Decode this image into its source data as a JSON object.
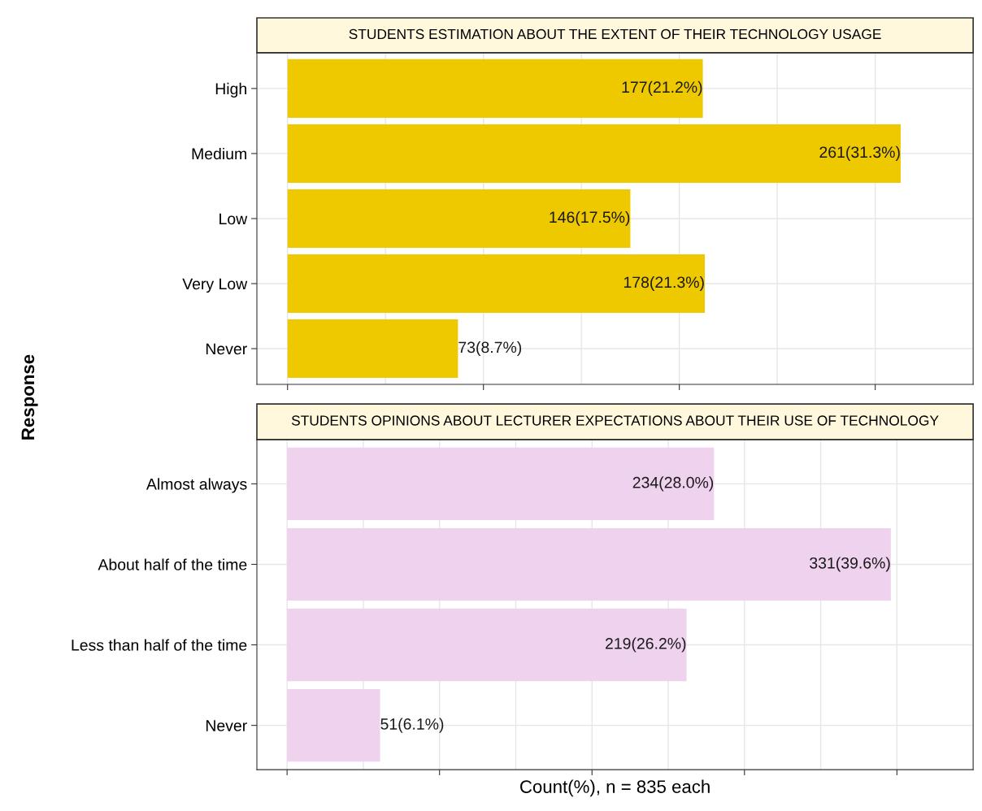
{
  "chart_data": [
    {
      "type": "bar",
      "orientation": "horizontal",
      "title": "STUDENTS ESTIMATION ABOUT THE EXTENT OF THEIR TECHNOLOGY USAGE",
      "ylabel": "Response",
      "categories": [
        "High",
        "Medium",
        "Low",
        "Very Low",
        "Never"
      ],
      "values": [
        21.2,
        31.3,
        17.5,
        21.3,
        8.7
      ],
      "value_labels": [
        "177(21.2%)",
        "261(31.3%)",
        "146(17.5%)",
        "178(21.3%)",
        "73(8.7%)"
      ],
      "color": "#eec900",
      "xticks": [
        {
          "value": 0,
          "label": null
        },
        {
          "value": 10,
          "label": null
        },
        {
          "value": 20,
          "label": null
        },
        {
          "value": 30,
          "label": null
        }
      ],
      "tick_labels": "y",
      "grid": true,
      "legend": false
    },
    {
      "type": "bar",
      "orientation": "horizontal",
      "title": "STUDENTS OPINIONS ABOUT LECTURER EXPECTATIONS ABOUT THEIR USE OF TECHNOLOGY",
      "xlabel": "Count(%), n = 835 each",
      "categories": [
        "Almost always",
        "About half of the time",
        "Less than half of the time",
        "Never"
      ],
      "values": [
        28.0,
        39.6,
        26.2,
        6.1
      ],
      "value_labels": [
        "234(28.0%)",
        "331(39.6%)",
        "219(26.2%)",
        "51(6.1%)"
      ],
      "color": "#eed2ee",
      "xticks": [
        {
          "value": 0,
          "label": null
        },
        {
          "value": 10,
          "label": null
        },
        {
          "value": 20,
          "label": null
        },
        {
          "value": 30,
          "label": null
        },
        {
          "value": 40,
          "label": null
        }
      ],
      "tick_labels": "y",
      "grid": true,
      "legend": false
    }
  ]
}
